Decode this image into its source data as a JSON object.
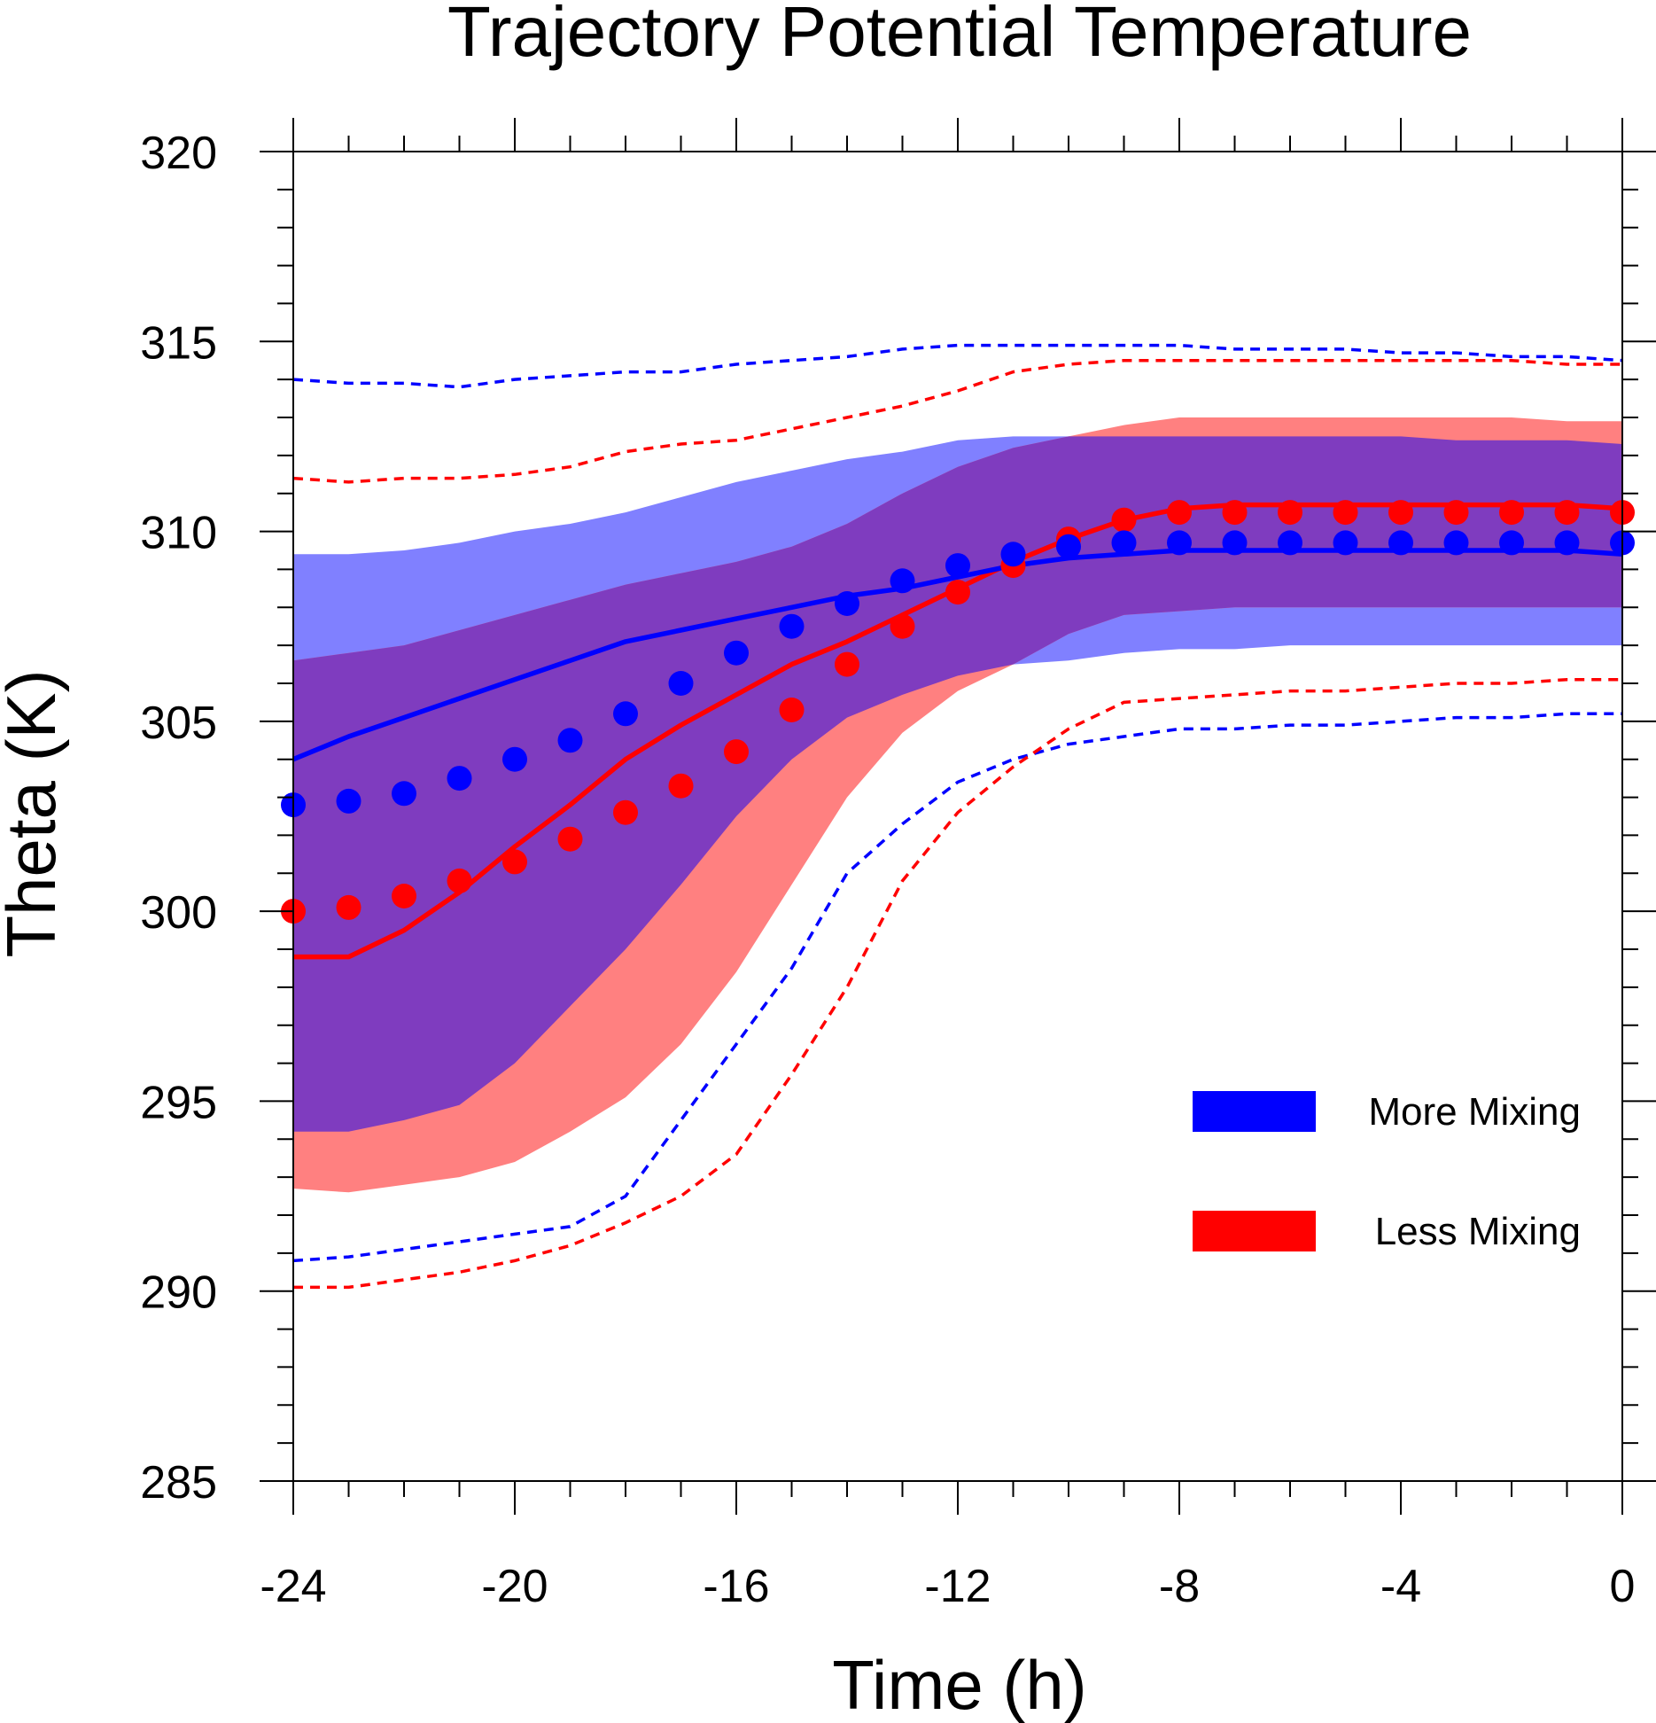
{
  "chart_data": {
    "type": "line",
    "title": "Trajectory Potential Temperature",
    "xlabel": "Time (h)",
    "ylabel": "Theta (K)",
    "xlim": [
      -24,
      0
    ],
    "ylim": [
      285,
      320
    ],
    "x_ticks": [
      -24,
      -20,
      -16,
      -12,
      -8,
      -4,
      0
    ],
    "y_ticks": [
      285,
      290,
      295,
      300,
      305,
      310,
      315,
      320
    ],
    "x_tick_labels": [
      "-24",
      "-20",
      "-16",
      "-12",
      "-8",
      "-4",
      "0"
    ],
    "y_tick_labels": [
      "285",
      "290",
      "295",
      "300",
      "305",
      "310",
      "315",
      "320"
    ],
    "grid": false,
    "legend_position": "lower-right",
    "x": [
      -24,
      -23,
      -22,
      -21,
      -20,
      -19,
      -18,
      -17,
      -16,
      -15,
      -14,
      -13,
      -12,
      -11,
      -10,
      -9,
      -8,
      -7,
      -6,
      -5,
      -4,
      -3,
      -2,
      -1,
      0
    ],
    "series": [
      {
        "name": "More Mixing",
        "color": "#0000ff",
        "band_color": "#8080ff",
        "mean": [
          304.0,
          304.6,
          305.1,
          305.6,
          306.1,
          306.6,
          307.1,
          307.4,
          307.7,
          308.0,
          308.3,
          308.5,
          308.8,
          309.1,
          309.3,
          309.4,
          309.5,
          309.5,
          309.5,
          309.5,
          309.5,
          309.5,
          309.5,
          309.5,
          309.4
        ],
        "median": [
          302.8,
          302.9,
          303.1,
          303.5,
          304.0,
          304.5,
          305.2,
          306.0,
          306.8,
          307.5,
          308.1,
          308.7,
          309.1,
          309.4,
          309.6,
          309.7,
          309.7,
          309.7,
          309.7,
          309.7,
          309.7,
          309.7,
          309.7,
          309.7,
          309.7
        ],
        "band_upper": [
          309.4,
          309.4,
          309.5,
          309.7,
          310.0,
          310.2,
          310.5,
          310.9,
          311.3,
          311.6,
          311.9,
          312.1,
          312.4,
          312.5,
          312.5,
          312.5,
          312.5,
          312.5,
          312.5,
          312.5,
          312.5,
          312.4,
          312.4,
          312.4,
          312.3
        ],
        "band_lower": [
          294.2,
          294.2,
          294.5,
          294.9,
          296.0,
          297.5,
          299.0,
          300.7,
          302.5,
          304.0,
          305.1,
          305.7,
          306.2,
          306.5,
          306.6,
          306.8,
          306.9,
          306.9,
          307.0,
          307.0,
          307.0,
          307.0,
          307.0,
          307.0,
          307.0
        ],
        "outer_upper": [
          314.0,
          313.9,
          313.9,
          313.8,
          314.0,
          314.1,
          314.2,
          314.2,
          314.4,
          314.5,
          314.6,
          314.8,
          314.9,
          314.9,
          314.9,
          314.9,
          314.9,
          314.8,
          314.8,
          314.8,
          314.7,
          314.7,
          314.6,
          314.6,
          314.5
        ],
        "outer_lower": [
          290.8,
          290.9,
          291.1,
          291.3,
          291.5,
          291.7,
          292.5,
          294.5,
          296.5,
          298.5,
          301.0,
          302.3,
          303.4,
          304.0,
          304.4,
          304.6,
          304.8,
          304.8,
          304.9,
          304.9,
          305.0,
          305.1,
          305.1,
          305.2,
          305.2
        ]
      },
      {
        "name": "Less Mixing",
        "color": "#ff0000",
        "band_color": "#ff8080",
        "mean": [
          298.8,
          298.8,
          299.5,
          300.5,
          301.7,
          302.8,
          304.0,
          304.9,
          305.7,
          306.5,
          307.1,
          307.8,
          308.5,
          309.2,
          309.8,
          310.3,
          310.6,
          310.7,
          310.7,
          310.7,
          310.7,
          310.7,
          310.7,
          310.7,
          310.6
        ],
        "median": [
          300.0,
          300.1,
          300.4,
          300.8,
          301.3,
          301.9,
          302.6,
          303.3,
          304.2,
          305.3,
          306.5,
          307.5,
          308.4,
          309.1,
          309.8,
          310.3,
          310.5,
          310.5,
          310.5,
          310.5,
          310.5,
          310.5,
          310.5,
          310.5,
          310.5
        ],
        "band_upper": [
          306.6,
          306.8,
          307.0,
          307.4,
          307.8,
          308.2,
          308.6,
          308.9,
          309.2,
          309.6,
          310.2,
          311.0,
          311.7,
          312.2,
          312.5,
          312.8,
          313.0,
          313.0,
          313.0,
          313.0,
          313.0,
          313.0,
          313.0,
          312.9,
          312.9
        ],
        "band_lower": [
          292.7,
          292.6,
          292.8,
          293.0,
          293.4,
          294.2,
          295.1,
          296.5,
          298.4,
          300.7,
          303.0,
          304.7,
          305.8,
          306.5,
          307.3,
          307.8,
          307.9,
          308.0,
          308.0,
          308.0,
          308.0,
          308.0,
          308.0,
          308.0,
          308.0
        ],
        "outer_upper": [
          311.4,
          311.3,
          311.4,
          311.4,
          311.5,
          311.7,
          312.1,
          312.3,
          312.4,
          312.7,
          313.0,
          313.3,
          313.7,
          314.2,
          314.4,
          314.5,
          314.5,
          314.5,
          314.5,
          314.5,
          314.5,
          314.5,
          314.5,
          314.4,
          314.4
        ],
        "outer_lower": [
          290.1,
          290.1,
          290.3,
          290.5,
          290.8,
          291.2,
          291.8,
          292.5,
          293.6,
          295.7,
          298.0,
          300.8,
          302.6,
          303.8,
          304.8,
          305.5,
          305.6,
          305.7,
          305.8,
          305.8,
          305.9,
          306.0,
          306.0,
          306.1,
          306.1
        ]
      }
    ],
    "legend": [
      {
        "label": "More Mixing",
        "color": "#0000ff"
      },
      {
        "label": "Less Mixing",
        "color": "#ff0000"
      }
    ]
  }
}
